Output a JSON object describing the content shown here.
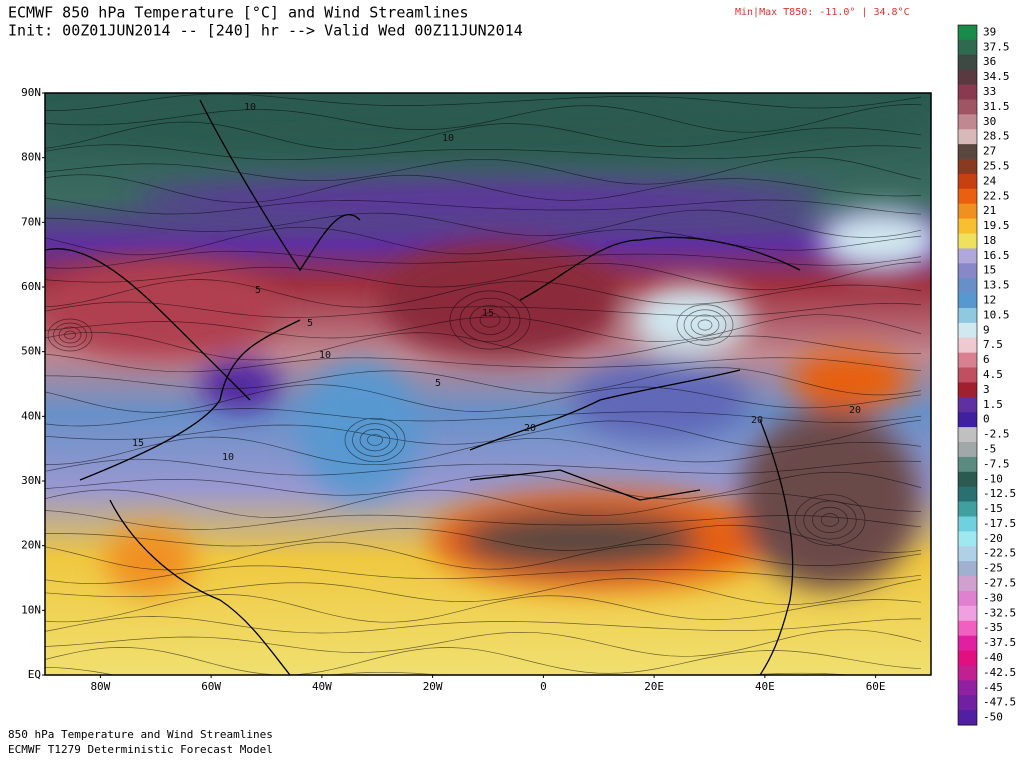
{
  "header": {
    "title": "ECMWF 850 hPa Temperature [°C] and Wind Streamlines",
    "subtitle": "Init: 00Z01JUN2014 -- [240] hr --> Valid Wed 00Z11JUN2014",
    "minmax": "Min|Max T850: -11.0° |  34.8°C"
  },
  "map": {
    "lat_labels": [
      {
        "value": 90,
        "label": "90N"
      },
      {
        "value": 80,
        "label": "80N"
      },
      {
        "value": 70,
        "label": "70N"
      },
      {
        "value": 60,
        "label": "60N"
      },
      {
        "value": 50,
        "label": "50N"
      },
      {
        "value": 40,
        "label": "40N"
      },
      {
        "value": 30,
        "label": "30N"
      },
      {
        "value": 20,
        "label": "20N"
      },
      {
        "value": 10,
        "label": "10N"
      },
      {
        "value": 0,
        "label": "EQ"
      }
    ],
    "lon_labels": [
      {
        "value": -80,
        "label": "80W"
      },
      {
        "value": -60,
        "label": "60W"
      },
      {
        "value": -40,
        "label": "40W"
      },
      {
        "value": -20,
        "label": "20W"
      },
      {
        "value": 0,
        "label": "0"
      },
      {
        "value": 20,
        "label": "20E"
      },
      {
        "value": 40,
        "label": "40E"
      },
      {
        "value": 60,
        "label": "60E"
      }
    ],
    "contour_labels": [
      "10",
      "10",
      "5",
      "5",
      "10",
      "5",
      "10",
      "15",
      "15",
      "20",
      "20",
      "20"
    ]
  },
  "colorbar": {
    "labels": [
      39,
      37.5,
      36,
      34.5,
      33,
      31.5,
      30,
      28.5,
      27,
      25.5,
      24,
      22.5,
      21,
      19.5,
      18,
      16.5,
      15,
      13.5,
      12,
      10.5,
      9,
      7.5,
      6,
      4.5,
      3,
      1.5,
      0,
      -2.5,
      -5,
      -7.5,
      -10,
      -12.5,
      -15,
      -17.5,
      -20,
      -22.5,
      -25,
      -27.5,
      -30,
      -32.5,
      -35,
      -37.5,
      -40,
      -42.5,
      -45,
      -47.5,
      -50
    ],
    "colors": [
      "#1a8a4a",
      "#2f6a50",
      "#3d4a44",
      "#5a3a40",
      "#8a3a50",
      "#a05565",
      "#c08890",
      "#d8b8b8",
      "#5a4840",
      "#8a3a20",
      "#c84010",
      "#e86010",
      "#f09020",
      "#f8c030",
      "#f0e060",
      "#b0a8d8",
      "#8888c8",
      "#6890c8",
      "#5898d0",
      "#90c8e0",
      "#d0e8f0",
      "#f0c8d0",
      "#d88090",
      "#c05060",
      "#a02030",
      "#6030a0",
      "#4020a0",
      "#c0c0c0",
      "#a0a8a8",
      "#5a8a80",
      "#2a5a50",
      "#2a7070",
      "#40a0a0",
      "#70d0e0",
      "#a0e8f0",
      "#b0d0e8",
      "#a0b0d0",
      "#d0a0d0",
      "#e080d0",
      "#f0a0e0",
      "#f060c0",
      "#e020a0",
      "#e01080",
      "#c02090",
      "#9020a0",
      "#7020a0",
      "#5020a0"
    ]
  },
  "footer": {
    "line1": "850 hPa Temperature and Wind Streamlines",
    "line2": "ECMWF T1279 Deterministic Forecast Model"
  }
}
